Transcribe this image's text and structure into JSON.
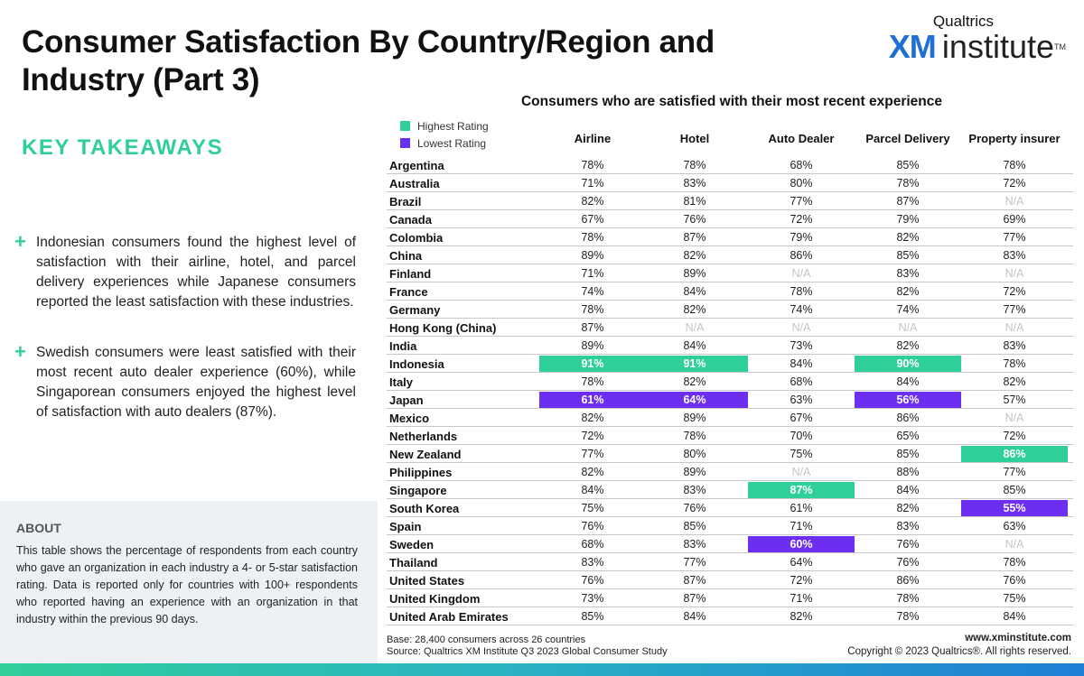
{
  "header": {
    "title": "Consumer Satisfaction By Country/Region and Industry (Part 3)",
    "brand_top": "Qualtrics",
    "brand_xm": "XM",
    "brand_institute": "institute",
    "brand_tm": "TM"
  },
  "takeaways": {
    "heading": "KEY TAKEAWAYS",
    "plus_glyph": "+",
    "items": [
      "Indonesian consumers found the highest level of satisfaction with their airline, hotel, and parcel delivery experiences while Japanese consumers reported the least satisfaction with these industries.",
      "Swedish consumers were least satisfied with their most recent auto dealer experience (60%), while Singaporean consumers enjoyed the highest level of satisfaction with auto dealers (87%)."
    ]
  },
  "about": {
    "heading": "ABOUT",
    "text": "This table shows the percentage of respondents from each country who gave an organization in each industry a 4- or 5-star satisfaction rating. Data is reported only for countries with 100+ respondents who reported having an experience with an organization in that industry within the previous 90 days."
  },
  "table": {
    "title": "Consumers who are satisfied with their most recent experience",
    "legend": {
      "high": "Highest Rating",
      "low": "Lowest Rating"
    },
    "colors": {
      "high": "#2fcf9a",
      "low": "#6c2ef0"
    },
    "columns": [
      "Airline",
      "Hotel",
      "Auto Dealer",
      "Parcel Delivery",
      "Property insurer"
    ],
    "rows": [
      {
        "country": "Argentina",
        "values": [
          "78%",
          "78%",
          "68%",
          "85%",
          "78%"
        ]
      },
      {
        "country": "Australia",
        "values": [
          "71%",
          "83%",
          "80%",
          "78%",
          "72%"
        ]
      },
      {
        "country": "Brazil",
        "values": [
          "82%",
          "81%",
          "77%",
          "87%",
          "N/A"
        ]
      },
      {
        "country": "Canada",
        "values": [
          "67%",
          "76%",
          "72%",
          "79%",
          "69%"
        ]
      },
      {
        "country": "Colombia",
        "values": [
          "78%",
          "87%",
          "79%",
          "82%",
          "77%"
        ]
      },
      {
        "country": "China",
        "values": [
          "89%",
          "82%",
          "86%",
          "85%",
          "83%"
        ]
      },
      {
        "country": "Finland",
        "values": [
          "71%",
          "89%",
          "N/A",
          "83%",
          "N/A"
        ]
      },
      {
        "country": "France",
        "values": [
          "74%",
          "84%",
          "78%",
          "82%",
          "72%"
        ]
      },
      {
        "country": "Germany",
        "values": [
          "78%",
          "82%",
          "74%",
          "74%",
          "77%"
        ]
      },
      {
        "country": "Hong Kong (China)",
        "values": [
          "87%",
          "N/A",
          "N/A",
          "N/A",
          "N/A"
        ]
      },
      {
        "country": "India",
        "values": [
          "89%",
          "84%",
          "73%",
          "82%",
          "83%"
        ]
      },
      {
        "country": "Indonesia",
        "values": [
          "91%",
          "91%",
          "84%",
          "90%",
          "78%"
        ],
        "high": [
          0,
          1,
          3
        ],
        "low": []
      },
      {
        "country": "Italy",
        "values": [
          "78%",
          "82%",
          "68%",
          "84%",
          "82%"
        ]
      },
      {
        "country": "Japan",
        "values": [
          "61%",
          "64%",
          "63%",
          "56%",
          "57%"
        ],
        "high": [],
        "low": [
          0,
          1,
          3
        ]
      },
      {
        "country": "Mexico",
        "values": [
          "82%",
          "89%",
          "67%",
          "86%",
          "N/A"
        ]
      },
      {
        "country": "Netherlands",
        "values": [
          "72%",
          "78%",
          "70%",
          "65%",
          "72%"
        ]
      },
      {
        "country": "New Zealand",
        "values": [
          "77%",
          "80%",
          "75%",
          "85%",
          "86%"
        ],
        "high": [
          4
        ],
        "low": []
      },
      {
        "country": "Philippines",
        "values": [
          "82%",
          "89%",
          "N/A",
          "88%",
          "77%"
        ]
      },
      {
        "country": "Singapore",
        "values": [
          "84%",
          "83%",
          "87%",
          "84%",
          "85%"
        ],
        "high": [
          2
        ],
        "low": []
      },
      {
        "country": "South Korea",
        "values": [
          "75%",
          "76%",
          "61%",
          "82%",
          "55%"
        ],
        "high": [],
        "low": [
          4
        ]
      },
      {
        "country": "Spain",
        "values": [
          "76%",
          "85%",
          "71%",
          "83%",
          "63%"
        ]
      },
      {
        "country": "Sweden",
        "values": [
          "68%",
          "83%",
          "60%",
          "76%",
          "N/A"
        ],
        "high": [],
        "low": [
          2
        ]
      },
      {
        "country": "Thailand",
        "values": [
          "83%",
          "77%",
          "64%",
          "76%",
          "78%"
        ]
      },
      {
        "country": "United States",
        "values": [
          "76%",
          "87%",
          "72%",
          "86%",
          "76%"
        ]
      },
      {
        "country": "United Kingdom",
        "values": [
          "73%",
          "87%",
          "71%",
          "78%",
          "75%"
        ]
      },
      {
        "country": "United Arab Emirates",
        "values": [
          "85%",
          "84%",
          "82%",
          "78%",
          "84%"
        ]
      }
    ]
  },
  "footer": {
    "base": "Base: 28,400 consumers across 26 countries",
    "source": "Source: Qualtrics XM Institute Q3 2023 Global Consumer Study",
    "url": "www.xminstitute.com",
    "copyright": "Copyright © 2023 Qualtrics®. All rights reserved."
  }
}
